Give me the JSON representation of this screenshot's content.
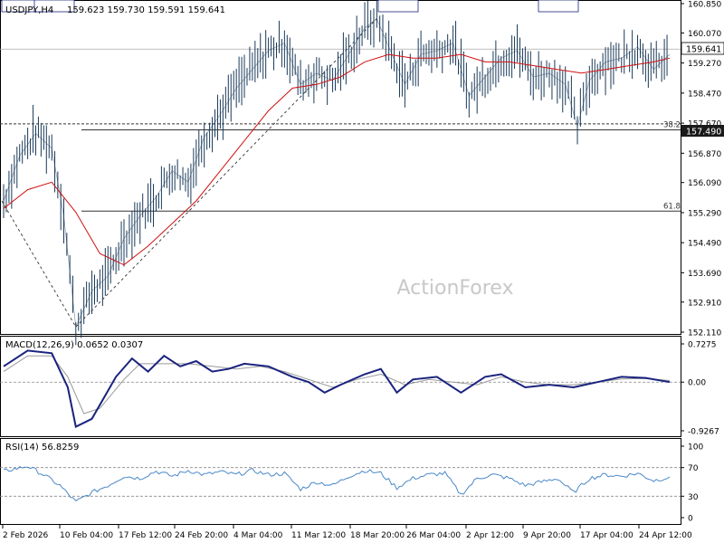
{
  "chart_data": {
    "type": "line",
    "symbol": "USDJPY,H4",
    "ohlc": "159.623 159.730 159.591 159.641",
    "current_price": "159.641",
    "last_price_tag": "157.490",
    "watermark": "ActionForex",
    "price_axis_ticks": [
      {
        "label": "160.850",
        "value": 160.85
      },
      {
        "label": "160.070",
        "value": 160.07
      },
      {
        "label": "159.270",
        "value": 159.27
      },
      {
        "label": "158.470",
        "value": 158.47
      },
      {
        "label": "157.670",
        "value": 157.67
      },
      {
        "label": "156.870",
        "value": 156.87
      },
      {
        "label": "156.090",
        "value": 156.09
      },
      {
        "label": "155.290",
        "value": 155.29
      },
      {
        "label": "154.490",
        "value": 154.49
      },
      {
        "label": "153.690",
        "value": 153.69
      },
      {
        "label": "152.910",
        "value": 152.91
      },
      {
        "label": "152.110",
        "value": 152.11
      }
    ],
    "time_axis_ticks": [
      "2 Feb 2026",
      "10 Feb 04:00",
      "17 Feb 12:00",
      "24 Feb 20:00",
      "4 Mar 04:00",
      "11 Mar 12:00",
      "18 Mar 20:00",
      "26 Mar 04:00",
      "2 Apr 12:00",
      "9 Apr 20:00",
      "17 Apr 04:00",
      "24 Apr 12:00"
    ],
    "annotations": [
      {
        "label": "157.650",
        "value": 157.65
      },
      {
        "label": "152.250",
        "value": 152.25
      },
      {
        "label": "160.450",
        "value": 160.45
      },
      {
        "label": "157.580",
        "value": 157.58
      }
    ],
    "fib_levels": [
      {
        "label": "38.2",
        "value": 157.49
      },
      {
        "label": "61.8",
        "value": 155.33
      }
    ],
    "price_series": [
      {
        "t": 0,
        "v": 155.6
      },
      {
        "t": 2,
        "v": 156.8
      },
      {
        "t": 4,
        "v": 157.4
      },
      {
        "t": 6,
        "v": 157.0
      },
      {
        "t": 7.5,
        "v": 155.2
      },
      {
        "t": 9,
        "v": 152.25
      },
      {
        "t": 11,
        "v": 153.2
      },
      {
        "t": 13,
        "v": 153.6
      },
      {
        "t": 15,
        "v": 154.6
      },
      {
        "t": 17,
        "v": 155.2
      },
      {
        "t": 19,
        "v": 155.7
      },
      {
        "t": 21,
        "v": 156.4
      },
      {
        "t": 23,
        "v": 156.1
      },
      {
        "t": 25,
        "v": 157.3
      },
      {
        "t": 27,
        "v": 157.9
      },
      {
        "t": 29,
        "v": 158.6
      },
      {
        "t": 31,
        "v": 159.1
      },
      {
        "t": 33,
        "v": 159.6
      },
      {
        "t": 35,
        "v": 159.8
      },
      {
        "t": 37,
        "v": 158.7
      },
      {
        "t": 39,
        "v": 159.0
      },
      {
        "t": 41,
        "v": 158.8
      },
      {
        "t": 43,
        "v": 159.5
      },
      {
        "t": 45,
        "v": 160.2
      },
      {
        "t": 46.5,
        "v": 160.45
      },
      {
        "t": 48,
        "v": 159.7
      },
      {
        "t": 50,
        "v": 158.7
      },
      {
        "t": 52,
        "v": 159.5
      },
      {
        "t": 54,
        "v": 159.6
      },
      {
        "t": 56,
        "v": 159.8
      },
      {
        "t": 58,
        "v": 158.4
      },
      {
        "t": 60,
        "v": 158.9
      },
      {
        "t": 62,
        "v": 159.4
      },
      {
        "t": 64,
        "v": 159.6
      },
      {
        "t": 66,
        "v": 158.9
      },
      {
        "t": 68,
        "v": 159.0
      },
      {
        "t": 70,
        "v": 158.7
      },
      {
        "t": 71.5,
        "v": 157.58
      },
      {
        "t": 73,
        "v": 158.8
      },
      {
        "t": 75,
        "v": 159.3
      },
      {
        "t": 77,
        "v": 159.4
      },
      {
        "t": 79,
        "v": 159.7
      },
      {
        "t": 81,
        "v": 159.1
      },
      {
        "t": 83,
        "v": 159.5
      }
    ],
    "ma_series": [
      {
        "t": 0,
        "v": 155.4
      },
      {
        "t": 3,
        "v": 155.9
      },
      {
        "t": 6,
        "v": 156.1
      },
      {
        "t": 9,
        "v": 155.3
      },
      {
        "t": 12,
        "v": 154.2
      },
      {
        "t": 15,
        "v": 153.9
      },
      {
        "t": 18,
        "v": 154.4
      },
      {
        "t": 21,
        "v": 155.0
      },
      {
        "t": 24,
        "v": 155.6
      },
      {
        "t": 27,
        "v": 156.4
      },
      {
        "t": 30,
        "v": 157.2
      },
      {
        "t": 33,
        "v": 158.0
      },
      {
        "t": 36,
        "v": 158.6
      },
      {
        "t": 39,
        "v": 158.7
      },
      {
        "t": 42,
        "v": 158.9
      },
      {
        "t": 45,
        "v": 159.3
      },
      {
        "t": 48,
        "v": 159.5
      },
      {
        "t": 51,
        "v": 159.4
      },
      {
        "t": 54,
        "v": 159.4
      },
      {
        "t": 57,
        "v": 159.5
      },
      {
        "t": 60,
        "v": 159.3
      },
      {
        "t": 63,
        "v": 159.3
      },
      {
        "t": 66,
        "v": 159.2
      },
      {
        "t": 69,
        "v": 159.1
      },
      {
        "t": 72,
        "v": 159.0
      },
      {
        "t": 75,
        "v": 159.1
      },
      {
        "t": 78,
        "v": 159.2
      },
      {
        "t": 81,
        "v": 159.3
      },
      {
        "t": 83,
        "v": 159.4
      }
    ],
    "macd": {
      "label": "MACD(12,26,9) 0.0652 0.0307",
      "axis_ticks": [
        {
          "label": "0.7275",
          "value": 0.7275
        },
        {
          "label": "0.00",
          "value": 0
        },
        {
          "label": "-0.9267",
          "value": -0.9267
        }
      ],
      "series": [
        {
          "t": 0,
          "v": 0.3
        },
        {
          "t": 3,
          "v": 0.6
        },
        {
          "t": 6,
          "v": 0.55
        },
        {
          "t": 8,
          "v": -0.1
        },
        {
          "t": 9,
          "v": -0.85
        },
        {
          "t": 11,
          "v": -0.7
        },
        {
          "t": 14,
          "v": 0.1
        },
        {
          "t": 16,
          "v": 0.45
        },
        {
          "t": 18,
          "v": 0.2
        },
        {
          "t": 20,
          "v": 0.5
        },
        {
          "t": 22,
          "v": 0.3
        },
        {
          "t": 24,
          "v": 0.4
        },
        {
          "t": 26,
          "v": 0.2
        },
        {
          "t": 28,
          "v": 0.25
        },
        {
          "t": 30,
          "v": 0.35
        },
        {
          "t": 33,
          "v": 0.3
        },
        {
          "t": 36,
          "v": 0.1
        },
        {
          "t": 38,
          "v": 0.0
        },
        {
          "t": 40,
          "v": -0.2
        },
        {
          "t": 42,
          "v": -0.05
        },
        {
          "t": 45,
          "v": 0.15
        },
        {
          "t": 47,
          "v": 0.25
        },
        {
          "t": 49,
          "v": -0.2
        },
        {
          "t": 51,
          "v": 0.05
        },
        {
          "t": 54,
          "v": 0.1
        },
        {
          "t": 57,
          "v": -0.2
        },
        {
          "t": 60,
          "v": 0.1
        },
        {
          "t": 62,
          "v": 0.15
        },
        {
          "t": 65,
          "v": -0.1
        },
        {
          "t": 68,
          "v": -0.05
        },
        {
          "t": 71,
          "v": -0.1
        },
        {
          "t": 74,
          "v": 0.0
        },
        {
          "t": 77,
          "v": 0.1
        },
        {
          "t": 80,
          "v": 0.08
        },
        {
          "t": 83,
          "v": 0.0
        }
      ],
      "signal_series": [
        {
          "t": 0,
          "v": 0.2
        },
        {
          "t": 3,
          "v": 0.5
        },
        {
          "t": 6,
          "v": 0.5
        },
        {
          "t": 8,
          "v": 0.1
        },
        {
          "t": 10,
          "v": -0.6
        },
        {
          "t": 12,
          "v": -0.5
        },
        {
          "t": 15,
          "v": 0.05
        },
        {
          "t": 17,
          "v": 0.35
        },
        {
          "t": 20,
          "v": 0.35
        },
        {
          "t": 23,
          "v": 0.35
        },
        {
          "t": 26,
          "v": 0.3
        },
        {
          "t": 29,
          "v": 0.25
        },
        {
          "t": 32,
          "v": 0.3
        },
        {
          "t": 35,
          "v": 0.2
        },
        {
          "t": 38,
          "v": 0.05
        },
        {
          "t": 41,
          "v": -0.1
        },
        {
          "t": 44,
          "v": 0.05
        },
        {
          "t": 47,
          "v": 0.15
        },
        {
          "t": 50,
          "v": -0.05
        },
        {
          "t": 53,
          "v": 0.05
        },
        {
          "t": 56,
          "v": 0.0
        },
        {
          "t": 59,
          "v": -0.05
        },
        {
          "t": 62,
          "v": 0.1
        },
        {
          "t": 65,
          "v": 0.0
        },
        {
          "t": 68,
          "v": -0.05
        },
        {
          "t": 71,
          "v": -0.05
        },
        {
          "t": 74,
          "v": 0.0
        },
        {
          "t": 77,
          "v": 0.06
        },
        {
          "t": 80,
          "v": 0.07
        },
        {
          "t": 83,
          "v": 0.03
        }
      ]
    },
    "rsi": {
      "label": "RSI(14) 56.8259",
      "axis_ticks": [
        {
          "label": "100",
          "value": 100
        },
        {
          "label": "70",
          "value": 70
        },
        {
          "label": "30",
          "value": 30
        },
        {
          "label": "0",
          "value": 0
        }
      ],
      "series": [
        {
          "t": 0,
          "v": 65
        },
        {
          "t": 3,
          "v": 72
        },
        {
          "t": 5,
          "v": 60
        },
        {
          "t": 7,
          "v": 45
        },
        {
          "t": 9,
          "v": 22
        },
        {
          "t": 11,
          "v": 35
        },
        {
          "t": 13,
          "v": 45
        },
        {
          "t": 15,
          "v": 58
        },
        {
          "t": 17,
          "v": 55
        },
        {
          "t": 19,
          "v": 65
        },
        {
          "t": 21,
          "v": 58
        },
        {
          "t": 23,
          "v": 66
        },
        {
          "t": 25,
          "v": 60
        },
        {
          "t": 27,
          "v": 64
        },
        {
          "t": 29,
          "v": 60
        },
        {
          "t": 31,
          "v": 66
        },
        {
          "t": 33,
          "v": 60
        },
        {
          "t": 35,
          "v": 62
        },
        {
          "t": 37,
          "v": 40
        },
        {
          "t": 39,
          "v": 50
        },
        {
          "t": 41,
          "v": 45
        },
        {
          "t": 43,
          "v": 58
        },
        {
          "t": 45,
          "v": 66
        },
        {
          "t": 47,
          "v": 62
        },
        {
          "t": 49,
          "v": 42
        },
        {
          "t": 51,
          "v": 55
        },
        {
          "t": 53,
          "v": 60
        },
        {
          "t": 55,
          "v": 62
        },
        {
          "t": 57,
          "v": 32
        },
        {
          "t": 59,
          "v": 55
        },
        {
          "t": 61,
          "v": 60
        },
        {
          "t": 63,
          "v": 55
        },
        {
          "t": 65,
          "v": 45
        },
        {
          "t": 67,
          "v": 50
        },
        {
          "t": 69,
          "v": 55
        },
        {
          "t": 71,
          "v": 35
        },
        {
          "t": 73,
          "v": 55
        },
        {
          "t": 75,
          "v": 60
        },
        {
          "t": 77,
          "v": 58
        },
        {
          "t": 79,
          "v": 62
        },
        {
          "t": 81,
          "v": 52
        },
        {
          "t": 83,
          "v": 56.8
        }
      ]
    },
    "colors": {
      "price": "#1a3a5a",
      "ma": "#d01010",
      "macd": "#1a237e",
      "signal": "#999999",
      "rsi": "#4a88c8",
      "level_line": "#333333",
      "watermark": "#c8c8c8"
    }
  }
}
